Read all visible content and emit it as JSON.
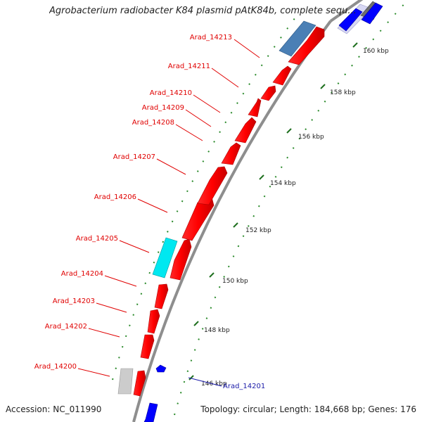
{
  "title": "Agrobacterium radiobacter K84 plasmid pAtK84b, complete sequ...",
  "footer": {
    "accession": "Accession: NC_011990",
    "summary": "Topology: circular; Length: 184,668 bp; Genes: 176"
  },
  "ticks": [
    {
      "label": "146 kbp"
    },
    {
      "label": "148 kbp"
    },
    {
      "label": "150 kbp"
    },
    {
      "label": "152 kbp"
    },
    {
      "label": "154 kbp"
    },
    {
      "label": "156 kbp"
    },
    {
      "label": "158 kbp"
    },
    {
      "label": "160 kbp"
    }
  ],
  "gene_labels": [
    {
      "label": "Arad_14213",
      "color": "#e00000"
    },
    {
      "label": "Arad_14211",
      "color": "#e00000"
    },
    {
      "label": "Arad_14210",
      "color": "#e00000"
    },
    {
      "label": "Arad_14209",
      "color": "#e00000"
    },
    {
      "label": "Arad_14208",
      "color": "#e00000"
    },
    {
      "label": "Arad_14207",
      "color": "#e00000"
    },
    {
      "label": "Arad_14206",
      "color": "#e00000"
    },
    {
      "label": "Arad_14205",
      "color": "#e00000"
    },
    {
      "label": "Arad_14204",
      "color": "#e00000"
    },
    {
      "label": "Arad_14203",
      "color": "#e00000"
    },
    {
      "label": "Arad_14202",
      "color": "#e00000"
    },
    {
      "label": "Arad_14200",
      "color": "#e00000"
    },
    {
      "label": "Arad_14201",
      "color": "#1a1aa8"
    }
  ],
  "colors": {
    "forward_gene": "#ff0000",
    "reverse_gene": "#0000ff",
    "rna_feature": "#00e5ee",
    "other_feature": "#4682b4",
    "backbone": "#9a9a9a",
    "tick_dots": "#2a8a2a"
  }
}
